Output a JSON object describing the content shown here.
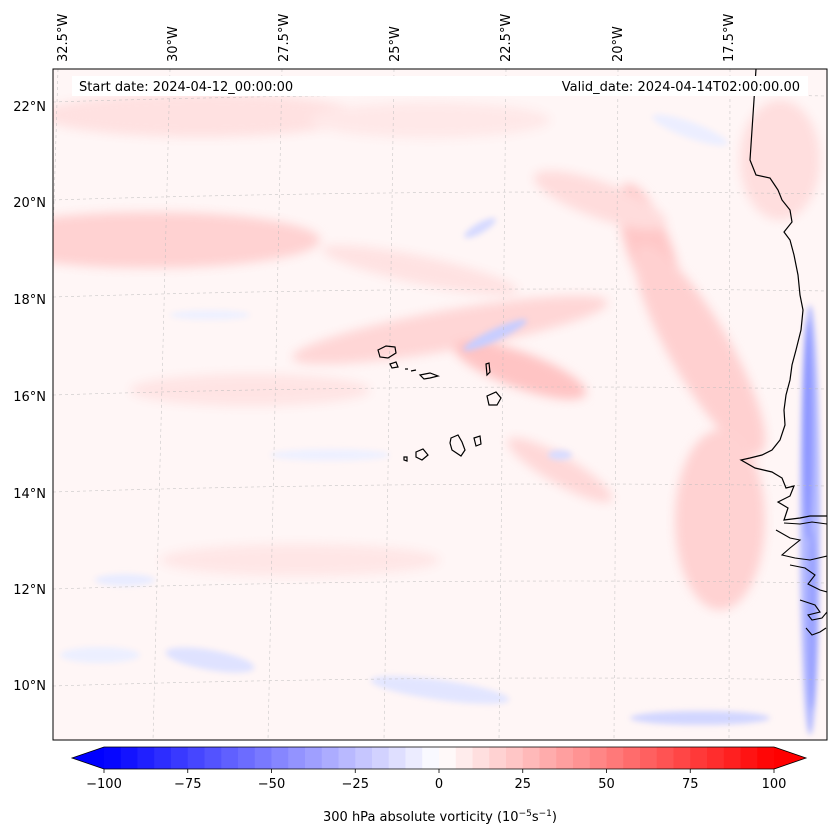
{
  "header": {
    "start_date": "Start date: 2024-04-12_00:00:00",
    "valid_date": "Valid_date: 2024-04-14T02:00:00.00"
  },
  "map": {
    "projection": "conic",
    "lon_ticks": [
      {
        "value": -32.5,
        "label": "32.5°W"
      },
      {
        "value": -30,
        "label": "30°W"
      },
      {
        "value": -27.5,
        "label": "27.5°W"
      },
      {
        "value": -25,
        "label": "25°W"
      },
      {
        "value": -22.5,
        "label": "22.5°W"
      },
      {
        "value": -20,
        "label": "20°W"
      },
      {
        "value": -17.5,
        "label": "17.5°W"
      }
    ],
    "lat_ticks": [
      {
        "value": 22,
        "label": "22°N"
      },
      {
        "value": 20,
        "label": "20°N"
      },
      {
        "value": 18,
        "label": "18°N"
      },
      {
        "value": 16,
        "label": "16°N"
      },
      {
        "value": 14,
        "label": "14°N"
      },
      {
        "value": 12,
        "label": "12°N"
      },
      {
        "value": 10,
        "label": "10°N"
      }
    ],
    "gridlines": true,
    "field": "300 hPa absolute vorticity",
    "colormap": "bwr",
    "colors": {
      "negative": "#0000ff",
      "zero": "#ffffff",
      "positive": "#ff0000"
    },
    "coastline_color": "#000000",
    "features": [
      "Cape Verde islands",
      "West African coast (Senegal, Gambia, Guinea-Bissau)"
    ]
  },
  "colorbar": {
    "ticks": [
      "−100",
      "−75",
      "−50",
      "−25",
      "0",
      "25",
      "50",
      "75",
      "100"
    ],
    "tick_values": [
      -100,
      -75,
      -50,
      -25,
      0,
      25,
      50,
      75,
      100
    ],
    "range": [
      -100,
      100
    ],
    "extend": "both",
    "label_main": "300 hPa absolute vorticity (10",
    "label_exp1": "−5",
    "label_mid": "s",
    "label_exp2": "−1",
    "label_end": ")"
  }
}
